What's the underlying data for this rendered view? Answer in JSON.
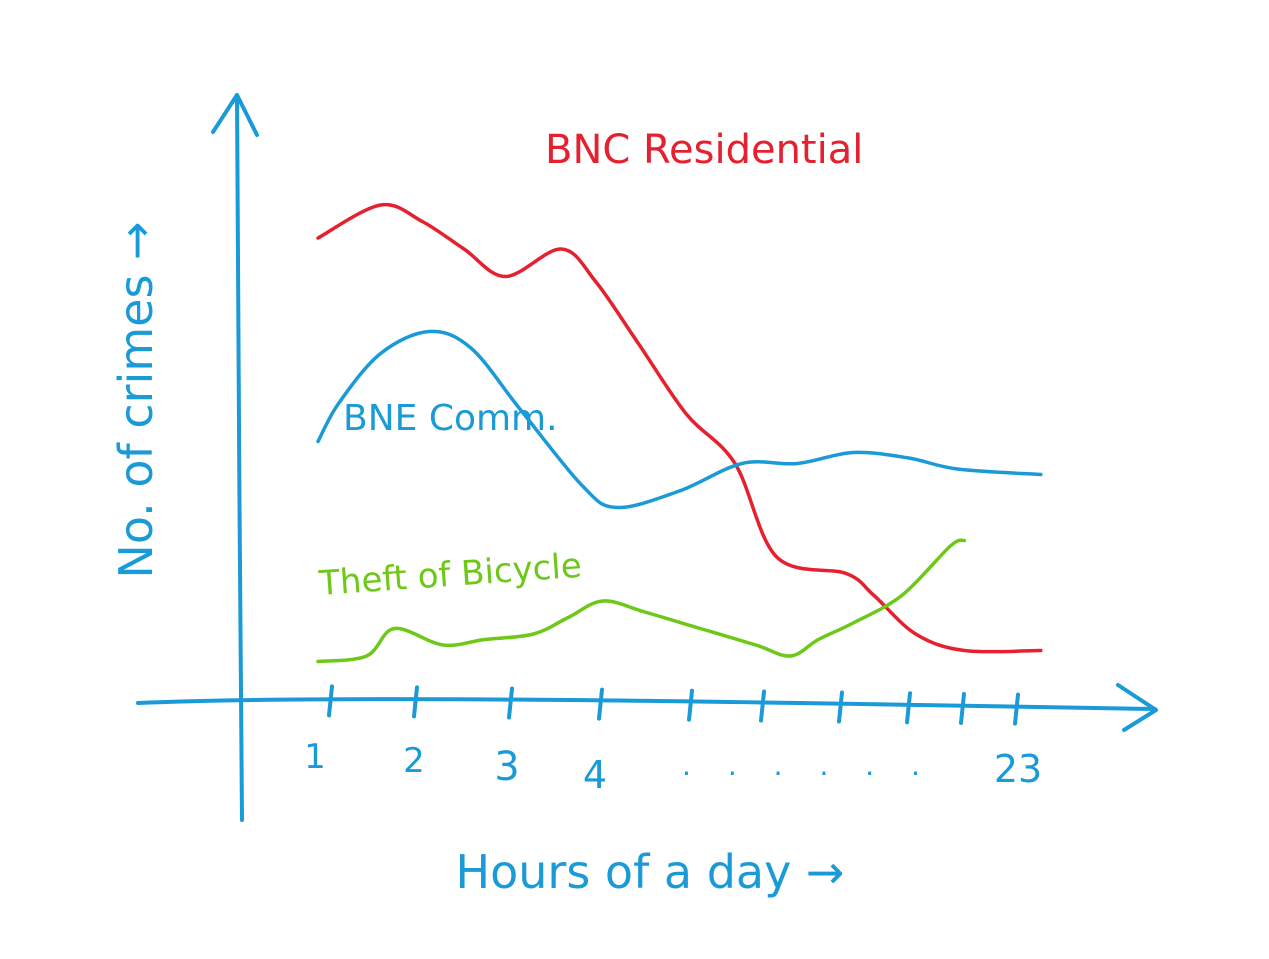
{
  "colors": {
    "axis": "#1a9ad6",
    "residential": "#e52130",
    "commercial": "#1a9ad6",
    "bicycle": "#6dc817",
    "background": "#ffffff"
  },
  "chart_data": {
    "type": "line",
    "title": "",
    "xlabel": "Hours of a day →",
    "ylabel": "No. of crimes →",
    "x_tick_labels": [
      "1",
      "2",
      "3",
      "4",
      "23"
    ],
    "x_ellipsis": ". . . . . .",
    "grid": false,
    "legend": "none (series labelled inline)",
    "note": "Hand-drawn qualitative sketch; y-axis has no numeric scale. Values are relative (0 = x-axis, 10 = top of plot).",
    "ylim": [
      0,
      10
    ],
    "xlim": [
      0,
      23
    ],
    "series": [
      {
        "name": "BNC Residential",
        "color": "#e52130",
        "points": [
          [
            0.0,
            8.4
          ],
          [
            0.9,
            9.0
          ],
          [
            1.5,
            8.7
          ],
          [
            2.1,
            8.2
          ],
          [
            2.7,
            7.7
          ],
          [
            3.5,
            8.2
          ],
          [
            4.0,
            7.6
          ],
          [
            4.6,
            6.5
          ],
          [
            5.3,
            5.2
          ],
          [
            6.0,
            4.3
          ],
          [
            6.6,
            2.6
          ],
          [
            7.6,
            2.3
          ],
          [
            8.0,
            1.9
          ],
          [
            8.6,
            1.2
          ],
          [
            9.3,
            0.9
          ],
          [
            10.4,
            0.9
          ]
        ]
      },
      {
        "name": "BNE Comm.",
        "color": "#1a9ad6",
        "points": [
          [
            0.0,
            4.7
          ],
          [
            0.3,
            5.4
          ],
          [
            0.9,
            6.3
          ],
          [
            1.6,
            6.7
          ],
          [
            2.2,
            6.4
          ],
          [
            2.9,
            5.3
          ],
          [
            3.8,
            3.9
          ],
          [
            4.3,
            3.5
          ],
          [
            5.2,
            3.8
          ],
          [
            6.1,
            4.3
          ],
          [
            6.9,
            4.3
          ],
          [
            7.7,
            4.5
          ],
          [
            8.5,
            4.4
          ],
          [
            9.2,
            4.2
          ],
          [
            10.4,
            4.1
          ]
        ]
      },
      {
        "name": "Theft of Bicycle",
        "color": "#6dc817",
        "points": [
          [
            0.0,
            0.7
          ],
          [
            0.7,
            0.8
          ],
          [
            1.1,
            1.3
          ],
          [
            1.8,
            1.0
          ],
          [
            2.4,
            1.1
          ],
          [
            3.1,
            1.2
          ],
          [
            3.6,
            1.5
          ],
          [
            4.1,
            1.8
          ],
          [
            4.7,
            1.6
          ],
          [
            5.5,
            1.3
          ],
          [
            6.3,
            1.0
          ],
          [
            6.8,
            0.8
          ],
          [
            7.2,
            1.1
          ],
          [
            7.7,
            1.4
          ],
          [
            8.4,
            1.9
          ],
          [
            9.1,
            2.8
          ],
          [
            9.3,
            2.9
          ]
        ]
      }
    ],
    "series_labels": {
      "residential": "BNC Residential",
      "commercial": "BNE Comm.",
      "bicycle": "Theft of Bicycle"
    }
  }
}
